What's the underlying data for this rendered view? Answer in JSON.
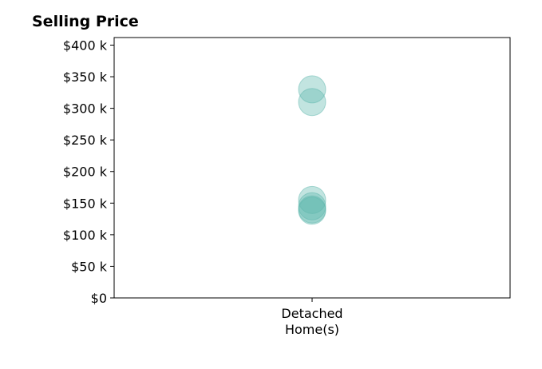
{
  "chart_data": {
    "type": "scatter",
    "title": "Selling Price",
    "xlabel": "",
    "ylabel": "",
    "categories": [
      [
        "Detached",
        "Home(s)"
      ]
    ],
    "series": [
      {
        "category_index": 0,
        "values": [
          330000,
          310000,
          155000,
          145000,
          140000,
          138000
        ]
      }
    ],
    "ylim": [
      0,
      412000
    ],
    "yticks": [
      0,
      50000,
      100000,
      150000,
      200000,
      250000,
      300000,
      350000,
      400000
    ],
    "ytick_labels": [
      "$0",
      "$50 k",
      "$100 k",
      "$150 k",
      "$200 k",
      "$250 k",
      "$300 k",
      "$350 k",
      "$400 k"
    ],
    "grid": false,
    "legend": "none",
    "colors": {
      "point": "#5fb8ae",
      "axis": "#000000"
    }
  }
}
